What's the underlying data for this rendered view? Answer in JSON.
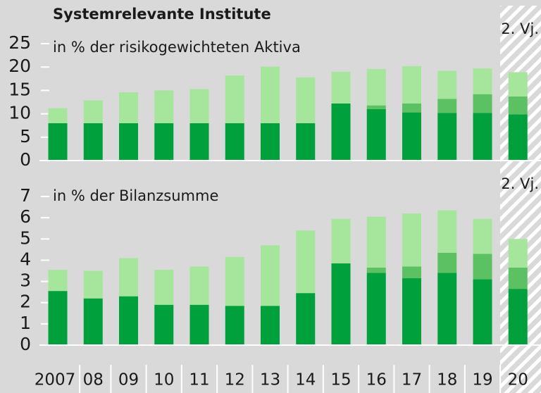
{
  "title": "Systemrelevante Institute",
  "categories": [
    "2007",
    "08",
    "09",
    "10",
    "11",
    "12",
    "13",
    "14",
    "15",
    "16",
    "17",
    "18",
    "19",
    "20"
  ],
  "chart_data": [
    {
      "type": "stacked_bar",
      "subtitle": "in % der risikogewichteten Aktiva",
      "annotation": "2. Vj.",
      "ylim": [
        0,
        25
      ],
      "yticks": [
        0,
        5,
        10,
        15,
        20,
        25
      ],
      "series": [
        {
          "color": "#00a03c",
          "values": [
            8,
            8,
            8,
            8,
            8,
            8,
            8,
            8,
            12.2,
            11,
            10.3,
            10.2,
            10.2,
            9.9
          ]
        },
        {
          "color": "#5cc163",
          "values": [
            0,
            0,
            0,
            0,
            0,
            0,
            0,
            0,
            0,
            0.8,
            1.9,
            3.0,
            4.0,
            3.8
          ]
        },
        {
          "color": "#a6e69c",
          "values": [
            3.2,
            4.9,
            6.6,
            7.0,
            7.3,
            10.2,
            12.1,
            9.8,
            6.8,
            7.8,
            8.0,
            6.0,
            5.5,
            5.2
          ]
        }
      ]
    },
    {
      "type": "stacked_bar",
      "subtitle": "in % der Bilanzsumme",
      "annotation": "2. Vj.",
      "ylim": [
        0,
        7
      ],
      "yticks": [
        0,
        1,
        2,
        3,
        4,
        5,
        6,
        7
      ],
      "series": [
        {
          "color": "#00a03c",
          "values": [
            2.55,
            2.2,
            2.3,
            1.9,
            1.9,
            1.85,
            1.85,
            2.45,
            3.85,
            3.4,
            3.15,
            3.4,
            3.1,
            2.65
          ]
        },
        {
          "color": "#5cc163",
          "values": [
            0,
            0,
            0,
            0,
            0,
            0,
            0,
            0,
            0,
            0.25,
            0.55,
            0.95,
            1.2,
            1.0
          ]
        },
        {
          "color": "#a6e69c",
          "values": [
            1.0,
            1.3,
            1.8,
            1.65,
            1.8,
            2.3,
            2.85,
            2.95,
            2.1,
            2.4,
            2.5,
            2.0,
            1.65,
            1.35
          ]
        }
      ]
    }
  ]
}
